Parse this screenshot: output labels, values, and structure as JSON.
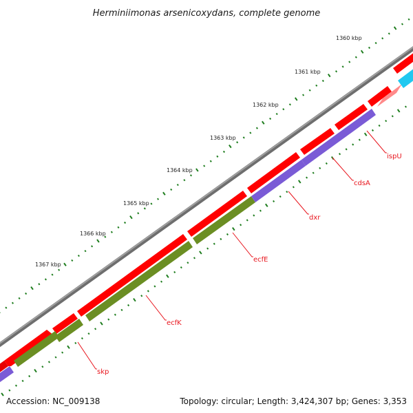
{
  "title": "Herminiimonas arsenicoxydans, complete genome",
  "scale_ticks": [
    "1360 kbp",
    "1361 kbp",
    "1362 kbp",
    "1363 kbp",
    "1364 kbp",
    "1365 kbp",
    "1366 kbp",
    "1367 kbp"
  ],
  "genes": [
    "ispU",
    "cdsA",
    "dxr",
    "ecfE",
    "ecfK",
    "skp"
  ],
  "footer": {
    "accession": "Accession: NC_009138",
    "summary": "Topology: circular; Length: 3,424,307 bp; Genes: 3,353"
  },
  "colors": {
    "backbone": "#8a8a8a",
    "forward_cds": "#ff0000",
    "forward_cds_light": "#ff8080",
    "forward_cds_cyan": "#20c8f0",
    "reverse_purple": "#7a5bd6",
    "reverse_green": "#6b8e23",
    "tick_green": "#1e7d1e",
    "label_red": "#e8141c"
  }
}
